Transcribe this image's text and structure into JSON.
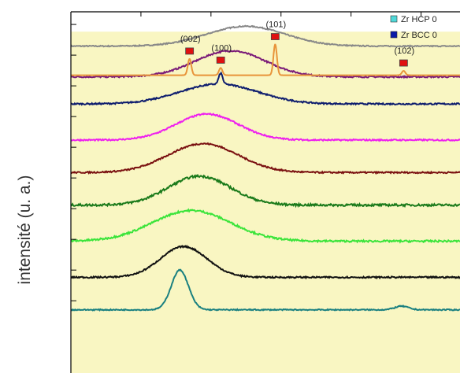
{
  "colors": {
    "background_panel": "#f9f6c2",
    "reference_hcp": "#e8943a",
    "peak_marker": "#e01010",
    "legend_hcp": "#4fd8d8",
    "legend_bcc": "#0a1aa8"
  },
  "chart_data": {
    "type": "line",
    "title": "",
    "xlabel": "",
    "ylabel": "intensité (u. a.)",
    "x_range": [
      0,
      100
    ],
    "grid": false,
    "legend_position": "top-right",
    "legend": [
      {
        "label": "Zr HCP 0",
        "color": "#4fd8d8"
      },
      {
        "label": "Zr BCC 0",
        "color": "#0a1aa8"
      }
    ],
    "reference_peaks": [
      {
        "label": "(002)",
        "x": 30.5,
        "height": 0.45
      },
      {
        "label": "(100)",
        "x": 38.5,
        "height": 0.2
      },
      {
        "label": "(101)",
        "x": 52.5,
        "height": 0.85
      },
      {
        "label": "(102)",
        "x": 85.5,
        "height": 0.12
      }
    ],
    "series": [
      {
        "color": "#888888",
        "baseline": 0.905,
        "amp": 0.055,
        "mu": 45,
        "sigma": 10,
        "noise": 0.003,
        "sharp": 0
      },
      {
        "color": "#7a1a78",
        "baseline": 0.82,
        "amp": 0.072,
        "mu": 41,
        "sigma": 9,
        "noise": 0.004,
        "sharp": 0
      },
      {
        "color": "#0e1d6e",
        "baseline": 0.745,
        "amp": 0.055,
        "mu": 38,
        "sigma": 10,
        "noise": 0.004,
        "sharp": 0.03
      },
      {
        "color": "#ee20ee",
        "baseline": 0.645,
        "amp": 0.072,
        "mu": 35,
        "sigma": 8,
        "noise": 0.004,
        "sharp": 0
      },
      {
        "color": "#7a1010",
        "baseline": 0.555,
        "amp": 0.08,
        "mu": 34,
        "sigma": 9,
        "noise": 0.004,
        "sharp": 0
      },
      {
        "color": "#1a7a1a",
        "baseline": 0.465,
        "amp": 0.08,
        "mu": 33,
        "sigma": 8,
        "noise": 0.006,
        "sharp": 0
      },
      {
        "color": "#3ae43a",
        "baseline": 0.365,
        "amp": 0.085,
        "mu": 31,
        "sigma": 10,
        "noise": 0.005,
        "sharp": 0
      },
      {
        "color": "#111111",
        "baseline": 0.265,
        "amp": 0.085,
        "mu": 29,
        "sigma": 6,
        "noise": 0.004,
        "sharp": 0
      },
      {
        "color": "#1a8080",
        "baseline": 0.175,
        "amp": 0.11,
        "mu": 28,
        "sigma": 2.2,
        "noise": 0.003,
        "sharp": 0
      }
    ]
  }
}
